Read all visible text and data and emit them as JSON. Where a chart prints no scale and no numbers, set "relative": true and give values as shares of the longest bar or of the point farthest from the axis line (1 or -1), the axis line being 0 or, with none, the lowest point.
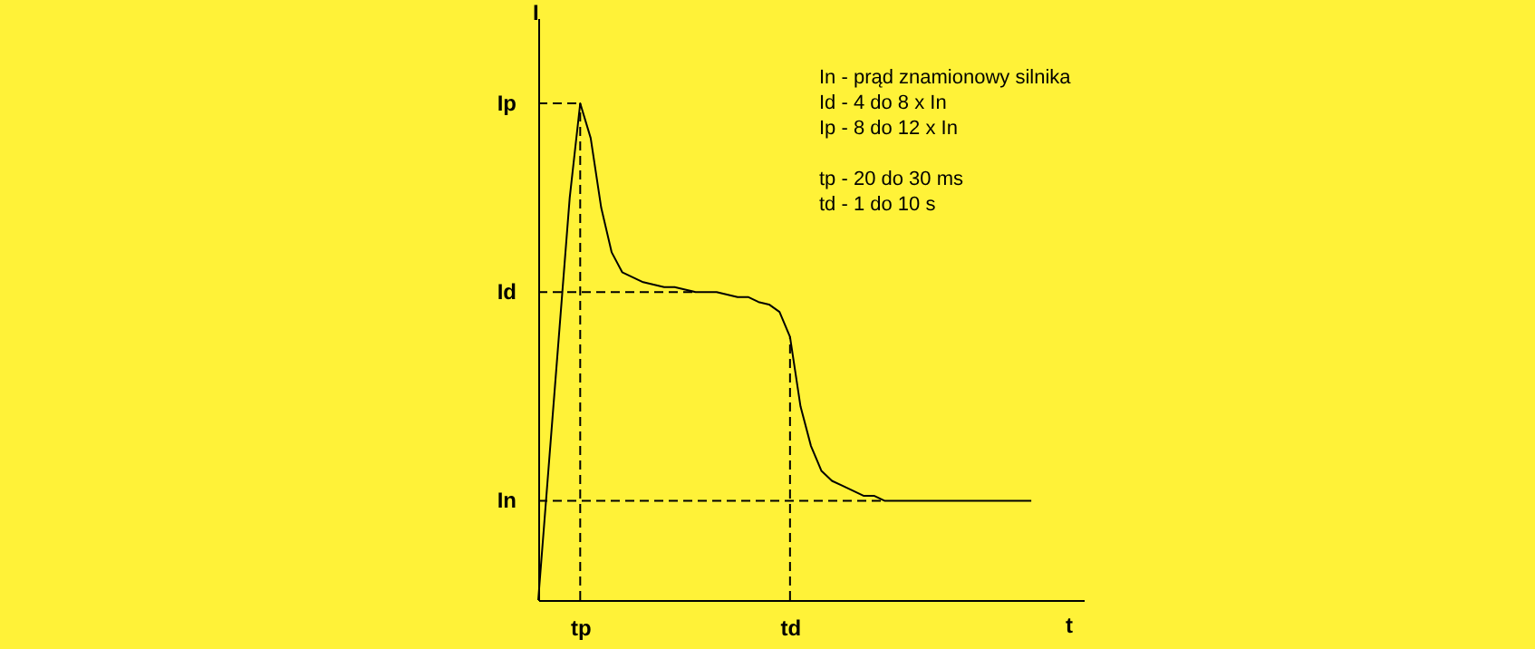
{
  "chart_data": {
    "type": "line",
    "relative": true,
    "xlabel": "t",
    "ylabel": "I",
    "marker": "none",
    "categories": [
      null,
      null,
      null,
      null,
      "tp",
      null,
      null,
      null,
      null,
      null,
      null,
      null,
      null,
      null,
      null,
      null,
      null,
      null,
      null,
      null,
      null,
      null,
      null,
      null,
      "td",
      null,
      null,
      null,
      null,
      null,
      null,
      null,
      null,
      null,
      null,
      null,
      null,
      null,
      null,
      null,
      null,
      null,
      null,
      null,
      null,
      null,
      null,
      null,
      null,
      null,
      null,
      null,
      null
    ],
    "annotations": [
      "In - prąd znamionowy silnika",
      "Id - 4 do 8 x In",
      "Ip - 8 do 12 x In",
      "tp - 20 do 30 ms",
      "td - 1 do 10 s"
    ],
    "ref_lines": [
      {
        "axis": "y",
        "value": 1,
        "label": "Ip",
        "line_style": "dashed",
        "color": "#000000"
      },
      {
        "axis": "y",
        "value": 0.62,
        "label": "Id",
        "line_style": "dashed",
        "color": "#000000"
      },
      {
        "axis": "y",
        "value": 0.2,
        "label": "In",
        "line_style": "dashed",
        "color": "#000000"
      },
      {
        "axis": "x",
        "value": "tp",
        "line_style": "dashed",
        "color": "#000000"
      },
      {
        "axis": "x",
        "value": "td",
        "line_style": "dashed",
        "color": "#000000"
      }
    ],
    "series": [
      {
        "color": "#000000",
        "line_style": "solid",
        "values": [
          0,
          0.27,
          0.54,
          0.81,
          1,
          0.93,
          0.79,
          0.7,
          0.66,
          0.65,
          0.64,
          0.635,
          0.63,
          0.63,
          0.625,
          0.62,
          0.62,
          0.62,
          0.615,
          0.61,
          0.61,
          0.6,
          0.595,
          0.58,
          0.53,
          0.39,
          0.31,
          0.26,
          0.24,
          0.23,
          0.22,
          0.21,
          0.21,
          0.2,
          0.2,
          0.2,
          0.2,
          0.2,
          0.2,
          0.2,
          0.2,
          0.2,
          0.2,
          0.2,
          0.2,
          0.2,
          0.2,
          0.2,
          null,
          null,
          null,
          null,
          null
        ]
      }
    ]
  }
}
